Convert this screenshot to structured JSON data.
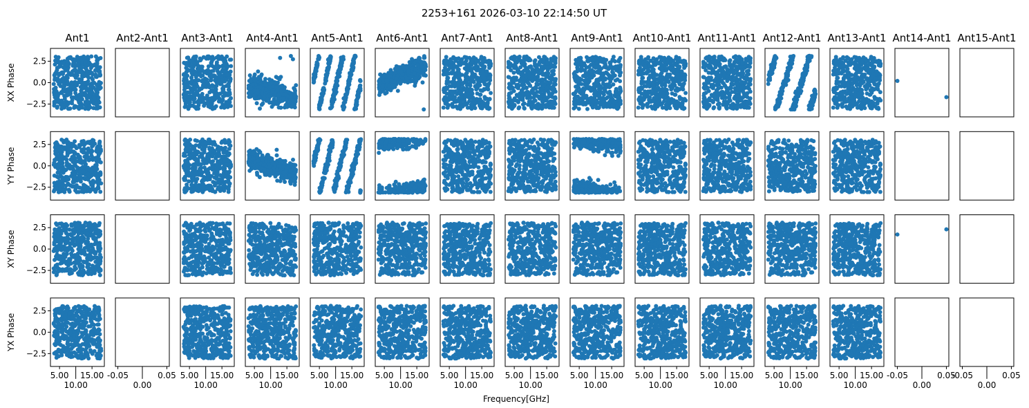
{
  "chart_data": {
    "type": "scatter",
    "title": "2253+161 2026-03-10 22:14:50 UT",
    "xlabel": "Frequency[GHz]",
    "columns": [
      "Ant1",
      "Ant2-Ant1",
      "Ant3-Ant1",
      "Ant4-Ant1",
      "Ant5-Ant1",
      "Ant6-Ant1",
      "Ant7-Ant1",
      "Ant8-Ant1",
      "Ant9-Ant1",
      "Ant10-Ant1",
      "Ant11-Ant1",
      "Ant12-Ant1",
      "Ant13-Ant1",
      "Ant14-Ant1",
      "Ant15-Ant1"
    ],
    "rows": [
      "XX Phase",
      "YY Phase",
      "XY Phase",
      "YX Phase"
    ],
    "ylim": [
      -4,
      4
    ],
    "yticks": [
      2.5,
      0.0,
      -2.5
    ],
    "ytick_labels": [
      "2.5",
      "0.0",
      "−2.5"
    ],
    "xlim_frequency": [
      2.2,
      18.8
    ],
    "xticks_frequency": [
      5,
      10,
      15
    ],
    "xtick_labels_frequency": [
      "5.00",
      "10.00",
      "15.00"
    ],
    "xlim_empty": [
      -0.055,
      0.055
    ],
    "xticks_empty": [
      -0.05,
      0,
      0.05
    ],
    "xtick_labels_empty": [
      "-0.05",
      "0.00",
      "0.05"
    ],
    "frequency_range_ghz": [
      3.2,
      17.8
    ],
    "marker_color": "#1f77b4",
    "grid": false,
    "panel_patterns_note_per_row": [
      [
        "noise",
        "empty",
        "noise",
        "slope:-0.1:-0.3:0.7",
        "slope:1.7:0:0.3",
        "slope:0.15:-0.3:0.6",
        "noise",
        "noise",
        "noise",
        "noise",
        "noise",
        "slope:1.2:0:0.35",
        "noise",
        "points",
        "empty"
      ],
      [
        "noise",
        "empty",
        "noise",
        "slope:-0.12:0.8:0.6",
        "slope:1.5:0:0.3",
        "slope:0.04:2.8:0.5",
        "noise",
        "noise",
        "slope:-0.065:-2.8:0.6",
        "noise",
        "noise",
        "noise",
        "noise",
        "empty",
        "empty"
      ],
      [
        "noise",
        "empty",
        "noise",
        "noise",
        "noise",
        "noise",
        "noise",
        "noise",
        "noise",
        "noise",
        "noise",
        "noise",
        "noise",
        "points",
        "empty"
      ],
      [
        "noise",
        "empty",
        "noise",
        "noise",
        "noise",
        "noise",
        "noise",
        "noise",
        "noise",
        "noise",
        "noise",
        "noise",
        "noise",
        "empty",
        "empty"
      ]
    ],
    "explicit_points": {
      "0-13": [
        [
          -0.05,
          0.2
        ],
        [
          0.05,
          -1.7
        ]
      ],
      "2-13": [
        [
          -0.05,
          1.7
        ],
        [
          0.05,
          2.3
        ]
      ]
    }
  }
}
